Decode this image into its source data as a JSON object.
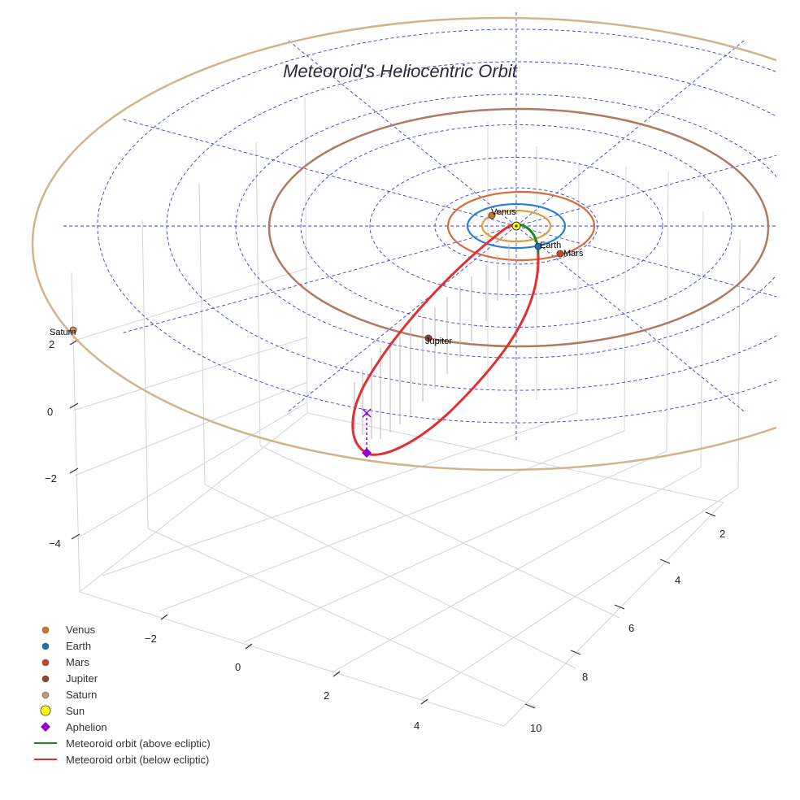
{
  "chart_data": {
    "type": "3d-orbit",
    "title": "Meteoroid's Heliocentric Orbit",
    "x_ticks": [
      "−2",
      "0",
      "2",
      "4"
    ],
    "y_ticks": [
      "2",
      "4",
      "6",
      "8",
      "10"
    ],
    "z_ticks": [
      "2",
      "0",
      "−2",
      "−4"
    ],
    "planets": [
      {
        "name": "Venus",
        "color": "#c87820"
      },
      {
        "name": "Earth",
        "color": "#1f6fb8"
      },
      {
        "name": "Mars",
        "color": "#d1451c"
      },
      {
        "name": "Jupiter",
        "color": "#8b4a2b"
      },
      {
        "name": "Saturn",
        "color": "#c9956a"
      }
    ],
    "orbit_colors": {
      "venus": "#d9a040",
      "earth": "#2a7fd4",
      "mars": "#d96a3a",
      "jupiter": "#b07a60",
      "saturn": "#d2b48c",
      "grid": "#3a3ae0"
    },
    "sun": {
      "name": "Sun",
      "color": "#ffff00"
    },
    "aphelion": {
      "name": "Aphelion",
      "color": "#9400d3"
    },
    "meteoroid": {
      "above_name": "Meteoroid orbit (above ecliptic)",
      "above_color": "#1a8a1a",
      "below_name": "Meteoroid orbit (below ecliptic)",
      "below_color": "#e03030"
    },
    "legend": [
      {
        "label": "Venus",
        "marker": "circle",
        "color": "#c87820"
      },
      {
        "label": "Earth",
        "marker": "circle",
        "color": "#1f6fb8"
      },
      {
        "label": "Mars",
        "marker": "circle",
        "color": "#d1451c"
      },
      {
        "label": "Jupiter",
        "marker": "circle",
        "color": "#8b4a2b"
      },
      {
        "label": "Saturn",
        "marker": "circle",
        "color": "#c9956a"
      },
      {
        "label": "Sun",
        "marker": "circle-large",
        "color": "#ffff00"
      },
      {
        "label": "Aphelion",
        "marker": "diamond",
        "color": "#9400d3"
      },
      {
        "label": "Meteoroid orbit (above ecliptic)",
        "marker": "line",
        "color": "#1a8a1a"
      },
      {
        "label": "Meteoroid orbit (below ecliptic)",
        "marker": "line",
        "color": "#e03030"
      }
    ],
    "grid": true
  }
}
